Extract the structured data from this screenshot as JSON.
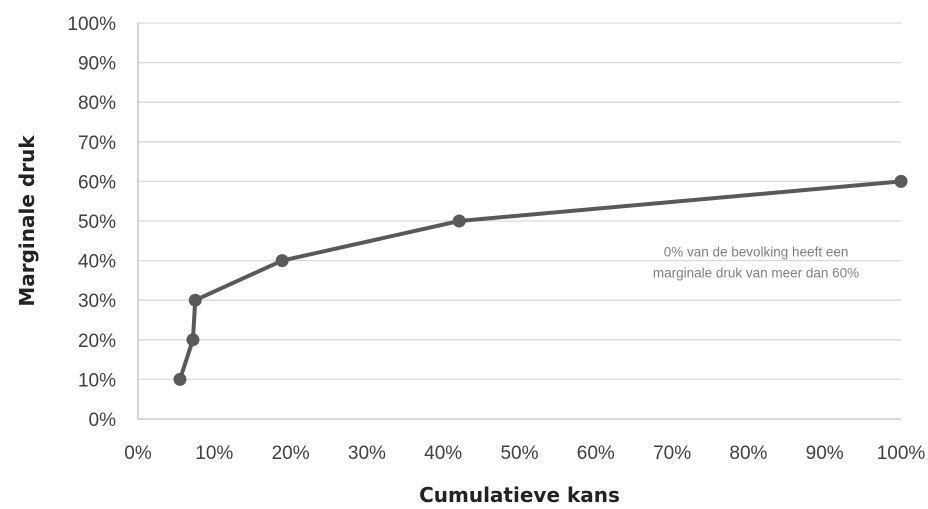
{
  "chart_data": {
    "type": "line",
    "title": "",
    "xlabel": "Cumulatieve kans",
    "ylabel": "Marginale druk",
    "x_ticks": [
      "0%",
      "10%",
      "20%",
      "30%",
      "40%",
      "50%",
      "60%",
      "70%",
      "80%",
      "90%",
      "100%"
    ],
    "y_ticks": [
      "0%",
      "10%",
      "20%",
      "30%",
      "40%",
      "50%",
      "60%",
      "70%",
      "80%",
      "90%",
      "100%"
    ],
    "xlim": [
      0,
      100
    ],
    "ylim": [
      0,
      100
    ],
    "grid": "horizontal",
    "legend": "none",
    "series": [
      {
        "x": [
          5.5,
          7.2,
          7.5,
          18.9,
          42.1,
          100
        ],
        "y": [
          10,
          20,
          30,
          40,
          50,
          60
        ],
        "color": "#595959"
      }
    ],
    "annotations": [
      {
        "lines": [
          "0% van de bevolking heeft een",
          "marginale druk van meer dan 60%"
        ],
        "x": 81,
        "y": 41
      }
    ]
  },
  "colors": {
    "line": "#595959",
    "marker": "#595959",
    "grid": "#d9d9d9",
    "axis": "#bfbfbf",
    "annotation": "#7f7f7f"
  }
}
